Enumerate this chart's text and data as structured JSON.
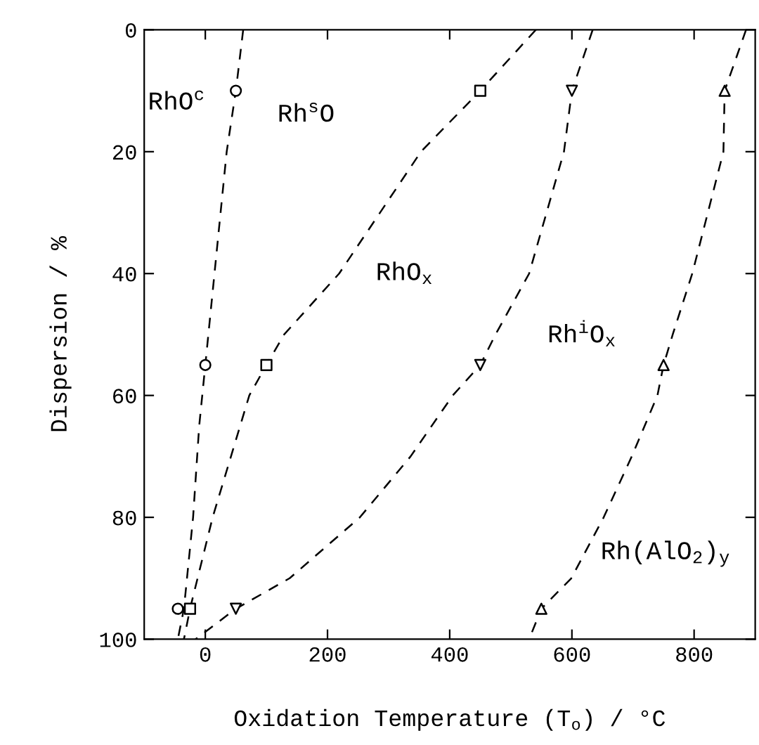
{
  "chart_data": {
    "type": "scatter",
    "xlabel": "Oxidation Temperature (T$_{o}$) / °C",
    "ylabel": "Dispersion / %",
    "xlim": [
      -100,
      900
    ],
    "ylim": [
      100,
      0
    ],
    "xticks": [
      0,
      200,
      400,
      600,
      800
    ],
    "yticks": [
      0,
      20,
      40,
      60,
      80,
      100
    ],
    "grid": false,
    "legend": false,
    "series": [
      {
        "type": "line",
        "line_style": "dashed",
        "marker": "none",
        "color": "#000000",
        "x": [
          62,
          50,
          35,
          20,
          5,
          0,
          -10,
          -20,
          -35,
          -45
        ],
        "values": [
          0,
          10,
          20,
          35,
          50,
          55,
          65,
          80,
          95,
          100
        ]
      },
      {
        "type": "line",
        "line_style": "dashed",
        "marker": "none",
        "color": "#000000",
        "x": [
          541,
          450,
          353,
          219,
          129,
          100,
          72,
          12,
          -25,
          -35
        ],
        "values": [
          0,
          10,
          20,
          40,
          50,
          55,
          60,
          80,
          95,
          100
        ]
      },
      {
        "type": "line",
        "line_style": "dashed",
        "marker": "none",
        "color": "#000000",
        "x": [
          634,
          600,
          587,
          530,
          475,
          450,
          405,
          336,
          253,
          138,
          50,
          -16
        ],
        "values": [
          0,
          10,
          20,
          40,
          50,
          55,
          60,
          70,
          80,
          90,
          95,
          100
        ]
      },
      {
        "type": "line",
        "line_style": "dashed",
        "marker": "none",
        "color": "#000000",
        "x": [
          885,
          850,
          848,
          797,
          765,
          750,
          740,
          698,
          652,
          599,
          550,
          530
        ],
        "values": [
          0,
          10,
          20,
          40,
          50,
          55,
          60,
          70,
          80,
          90,
          95,
          100
        ]
      },
      {
        "marker": "circle",
        "color": "#000000",
        "x": [
          -45,
          0,
          50
        ],
        "values": [
          95,
          55,
          10
        ]
      },
      {
        "marker": "square",
        "color": "#000000",
        "x": [
          -25,
          100,
          450
        ],
        "values": [
          95,
          55,
          10
        ]
      },
      {
        "marker": "triangle_down",
        "color": "#000000",
        "x": [
          50,
          450,
          600
        ],
        "values": [
          95,
          55,
          10
        ]
      },
      {
        "marker": "triangle",
        "color": "#000000",
        "x": [
          550,
          750,
          850
        ],
        "values": [
          95,
          55,
          10
        ]
      }
    ],
    "annotations": [
      "RhO$^{c}$",
      "Rh$^{s}$O",
      "RhO$_{x}$",
      "Rh$^{i}$O$_{x}$",
      "Rh(AlO$_{2}$)$_{y}$"
    ]
  }
}
